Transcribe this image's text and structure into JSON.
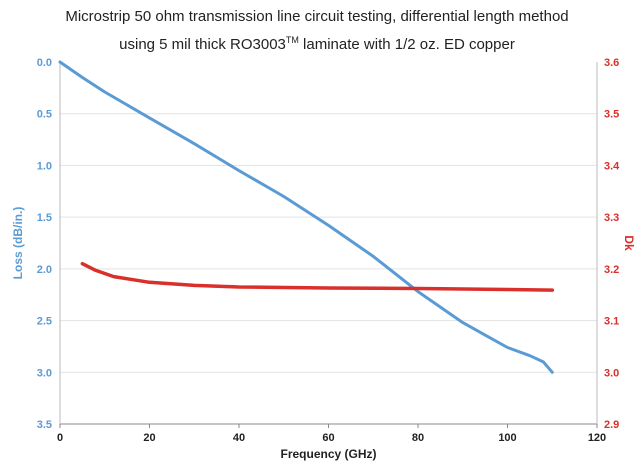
{
  "title_line1": "Microstrip 50 ohm transmission line circuit testing, differential length method",
  "title_line2_pre": "using 5 mil thick RO3003",
  "title_line2_sup": "TM",
  "title_line2_post": " laminate with 1/2 oz. ED copper",
  "colors": {
    "loss": "#5b9bd5",
    "dk": "#d9302b",
    "grid": "#e3e3e3",
    "axis": "#888888",
    "text": "#222222"
  },
  "chart_data": {
    "type": "line",
    "xlabel": "Frequency (GHz)",
    "ylabel_left": "Loss (dB/in.)",
    "ylabel_right": "Dk",
    "xlim": [
      0,
      120
    ],
    "ylim_left": [
      0.0,
      3.5
    ],
    "ylim_right": [
      2.9,
      3.6
    ],
    "left_axis_inverted": true,
    "grid": "horizontal",
    "x_ticks": [
      "0",
      "20",
      "40",
      "60",
      "80",
      "100",
      "120"
    ],
    "y_left_ticks": [
      "0.0",
      "0.5",
      "1.0",
      "1.5",
      "2.0",
      "2.5",
      "3.0",
      "3.5"
    ],
    "y_right_ticks": [
      "3.6",
      "3.5",
      "3.4",
      "3.3",
      "3.2",
      "3.1",
      "3.0",
      "2.9"
    ],
    "series": [
      {
        "axis": "left",
        "x": [
          0,
          5,
          10,
          20,
          30,
          40,
          50,
          60,
          70,
          80,
          90,
          95,
          100,
          105,
          108,
          110
        ],
        "y": [
          0.0,
          0.15,
          0.29,
          0.54,
          0.79,
          1.05,
          1.3,
          1.58,
          1.88,
          2.22,
          2.52,
          2.64,
          2.76,
          2.84,
          2.9,
          3.0
        ]
      },
      {
        "axis": "right",
        "x": [
          5,
          8,
          12,
          20,
          30,
          40,
          60,
          80,
          100,
          110
        ],
        "y": [
          3.21,
          3.197,
          3.185,
          3.174,
          3.168,
          3.165,
          3.163,
          3.162,
          3.16,
          3.159
        ]
      }
    ]
  }
}
